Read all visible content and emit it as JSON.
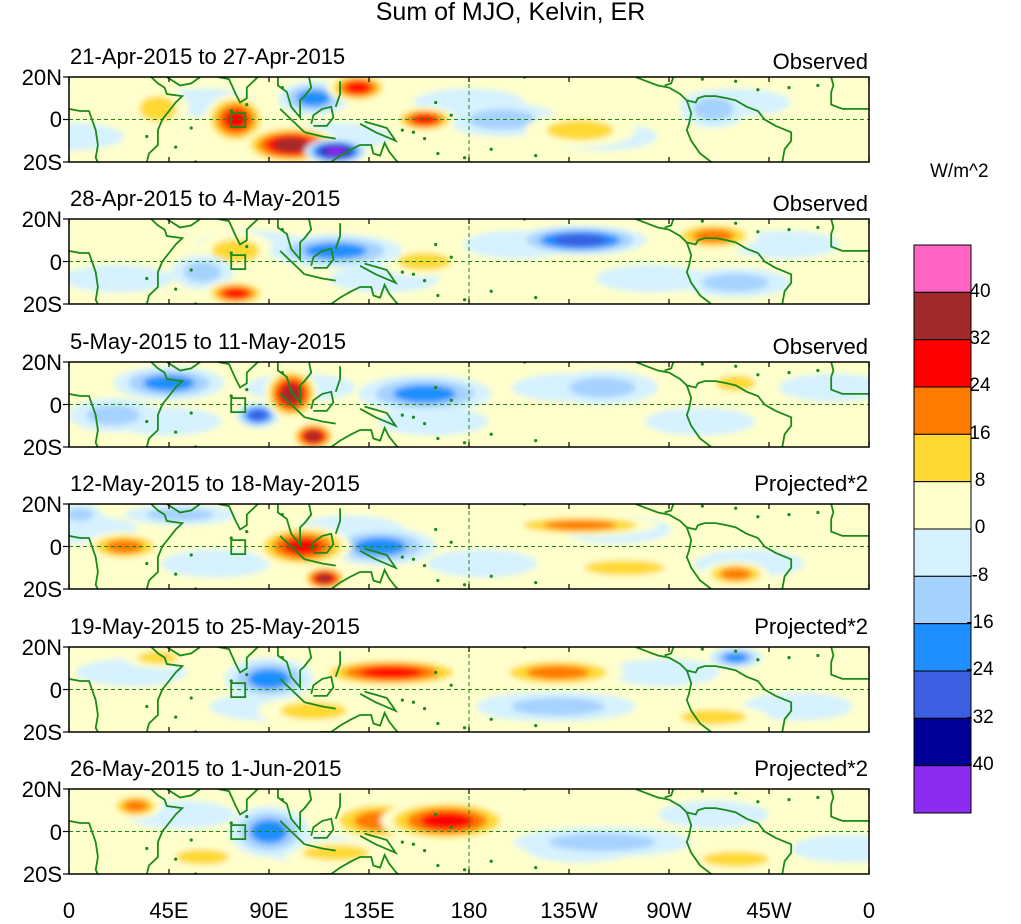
{
  "title": "Sum of MJO, Kelvin, ER",
  "units": "W/m^2",
  "lat_ticks": [
    "20N",
    "0",
    "20S"
  ],
  "lon_ticks": [
    "0",
    "45E",
    "90E",
    "135E",
    "180",
    "135W",
    "90W",
    "45W",
    "0"
  ],
  "colorbar": {
    "tick_labels": [
      "40",
      "32",
      "24",
      "16",
      "8",
      "0",
      "-8",
      "-16",
      "-24",
      "-32",
      "-40"
    ],
    "colors_top_to_bottom": [
      "#ff66c4",
      "#a32a2a",
      "#ff0000",
      "#ff7a00",
      "#ffd933",
      "#ffffcc",
      "#d6f2ff",
      "#a6d2ff",
      "#1f8fff",
      "#3b5fe0",
      "#000099",
      "#8c2cf0"
    ]
  },
  "panels": [
    {
      "dates": "21-Apr-2015 to 27-Apr-2015",
      "status": "Observed"
    },
    {
      "dates": "28-Apr-2015 to 4-May-2015",
      "status": "Observed"
    },
    {
      "dates": "5-May-2015 to 11-May-2015",
      "status": "Observed"
    },
    {
      "dates": "12-May-2015 to 18-May-2015",
      "status": "Projected*2"
    },
    {
      "dates": "19-May-2015 to 25-May-2015",
      "status": "Projected*2"
    },
    {
      "dates": "26-May-2015 to 1-Jun-2015",
      "status": "Projected*2"
    }
  ],
  "anomalies": [
    [
      {
        "lon": 75,
        "lat": 0,
        "v": 30,
        "rx": 14,
        "ry": 12
      },
      {
        "lon": 100,
        "lat": -12,
        "v": 40,
        "rx": 22,
        "ry": 9
      },
      {
        "lon": 120,
        "lat": -15,
        "v": -44,
        "rx": 14,
        "ry": 6
      },
      {
        "lon": 130,
        "lat": 15,
        "v": 26,
        "rx": 14,
        "ry": 7
      },
      {
        "lon": 160,
        "lat": 0,
        "v": 26,
        "rx": 14,
        "ry": 6
      },
      {
        "lon": 110,
        "lat": 10,
        "v": -22,
        "rx": 16,
        "ry": 8
      },
      {
        "lon": 195,
        "lat": 0,
        "v": -12,
        "rx": 25,
        "ry": 8
      },
      {
        "lon": 230,
        "lat": -5,
        "v": 12,
        "rx": 25,
        "ry": 8
      },
      {
        "lon": 290,
        "lat": 5,
        "v": -12,
        "rx": 15,
        "ry": 9
      },
      {
        "lon": 40,
        "lat": 5,
        "v": 10,
        "rx": 14,
        "ry": 10
      }
    ],
    [
      {
        "lon": 75,
        "lat": -15,
        "v": 26,
        "rx": 14,
        "ry": 6
      },
      {
        "lon": 75,
        "lat": 5,
        "v": 10,
        "rx": 18,
        "ry": 9
      },
      {
        "lon": 120,
        "lat": 5,
        "v": -20,
        "rx": 30,
        "ry": 8
      },
      {
        "lon": 230,
        "lat": 10,
        "v": -30,
        "rx": 30,
        "ry": 7
      },
      {
        "lon": 290,
        "lat": 12,
        "v": 24,
        "rx": 20,
        "ry": 7
      },
      {
        "lon": 160,
        "lat": 0,
        "v": 10,
        "rx": 20,
        "ry": 7
      },
      {
        "lon": 300,
        "lat": -10,
        "v": -14,
        "rx": 25,
        "ry": 7
      },
      {
        "lon": 60,
        "lat": -5,
        "v": -14,
        "rx": 14,
        "ry": 8
      }
    ],
    [
      {
        "lon": 100,
        "lat": 5,
        "v": 34,
        "rx": 12,
        "ry": 12
      },
      {
        "lon": 110,
        "lat": -15,
        "v": 34,
        "rx": 10,
        "ry": 7
      },
      {
        "lon": 85,
        "lat": -5,
        "v": -32,
        "rx": 10,
        "ry": 6
      },
      {
        "lon": 45,
        "lat": 10,
        "v": -24,
        "rx": 25,
        "ry": 8
      },
      {
        "lon": 160,
        "lat": 5,
        "v": -22,
        "rx": 30,
        "ry": 9
      },
      {
        "lon": 240,
        "lat": 8,
        "v": -16,
        "rx": 25,
        "ry": 8
      },
      {
        "lon": 300,
        "lat": 10,
        "v": 16,
        "rx": 15,
        "ry": 6
      },
      {
        "lon": 20,
        "lat": -5,
        "v": -14,
        "rx": 20,
        "ry": 8
      }
    ],
    [
      {
        "lon": 25,
        "lat": 0,
        "v": 22,
        "rx": 18,
        "ry": 7
      },
      {
        "lon": 105,
        "lat": 0,
        "v": 26,
        "rx": 22,
        "ry": 10
      },
      {
        "lon": 115,
        "lat": -15,
        "v": 34,
        "rx": 10,
        "ry": 6
      },
      {
        "lon": 230,
        "lat": 10,
        "v": 24,
        "rx": 35,
        "ry": 5
      },
      {
        "lon": 300,
        "lat": -13,
        "v": 24,
        "rx": 15,
        "ry": 6
      },
      {
        "lon": 140,
        "lat": 0,
        "v": -18,
        "rx": 25,
        "ry": 9
      },
      {
        "lon": 50,
        "lat": 15,
        "v": -14,
        "rx": 25,
        "ry": 5
      },
      {
        "lon": 5,
        "lat": 15,
        "v": -14,
        "rx": 10,
        "ry": 5
      },
      {
        "lon": 250,
        "lat": -10,
        "v": 10,
        "rx": 30,
        "ry": 6
      }
    ],
    [
      {
        "lon": 145,
        "lat": 8,
        "v": 28,
        "rx": 35,
        "ry": 7
      },
      {
        "lon": 220,
        "lat": 8,
        "v": 24,
        "rx": 30,
        "ry": 7
      },
      {
        "lon": 290,
        "lat": -13,
        "v": 16,
        "rx": 25,
        "ry": 6
      },
      {
        "lon": 90,
        "lat": 5,
        "v": -18,
        "rx": 20,
        "ry": 10
      },
      {
        "lon": 220,
        "lat": -8,
        "v": -16,
        "rx": 35,
        "ry": 7
      },
      {
        "lon": 300,
        "lat": 15,
        "v": -20,
        "rx": 12,
        "ry": 5
      },
      {
        "lon": 40,
        "lat": 15,
        "v": 10,
        "rx": 15,
        "ry": 5
      },
      {
        "lon": 110,
        "lat": -10,
        "v": 12,
        "rx": 25,
        "ry": 7
      }
    ],
    [
      {
        "lon": 170,
        "lat": 5,
        "v": 32,
        "rx": 30,
        "ry": 10
      },
      {
        "lon": 140,
        "lat": 5,
        "v": 24,
        "rx": 25,
        "ry": 10
      },
      {
        "lon": 30,
        "lat": 12,
        "v": 20,
        "rx": 12,
        "ry": 6
      },
      {
        "lon": 90,
        "lat": 0,
        "v": -18,
        "rx": 18,
        "ry": 12
      },
      {
        "lon": 240,
        "lat": -5,
        "v": -12,
        "rx": 40,
        "ry": 7
      },
      {
        "lon": 60,
        "lat": -12,
        "v": 12,
        "rx": 20,
        "ry": 6
      },
      {
        "lon": 300,
        "lat": -13,
        "v": 10,
        "rx": 25,
        "ry": 6
      },
      {
        "lon": 120,
        "lat": -10,
        "v": 12,
        "rx": 25,
        "ry": 6
      }
    ]
  ]
}
